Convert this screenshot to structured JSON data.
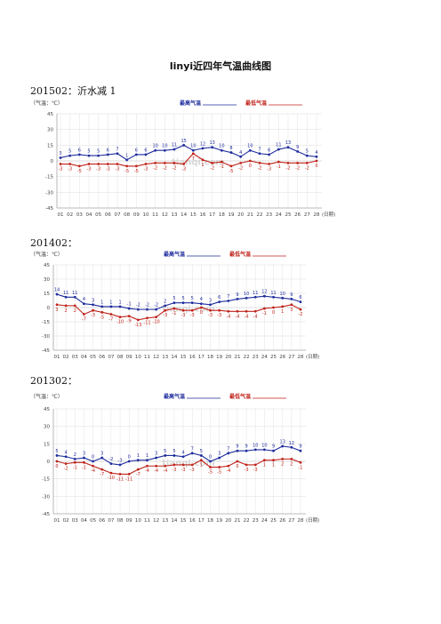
{
  "document": {
    "title": "linyi近四年气温曲线图"
  },
  "sections": [
    {
      "title": "201502：沂水减 1"
    },
    {
      "title": "201402："
    },
    {
      "title": "201302："
    }
  ],
  "colors": {
    "high": "#1f2d9e",
    "low": "#c0231b",
    "grid": "#dcdcdc",
    "axis": "#888888",
    "watermark": "#cfcfcf"
  },
  "chart_data": [
    {
      "type": "line",
      "ylabel": "（气温：℃）",
      "xlabel": "(日期)",
      "legend": {
        "position": "top-right",
        "high": "最高气温",
        "low": "最低气温"
      },
      "ylim": [
        -45,
        45
      ],
      "yticks": [
        45,
        30,
        15,
        0,
        -15,
        -30,
        -45
      ],
      "categories": [
        "01",
        "02",
        "03",
        "04",
        "05",
        "06",
        "07",
        "08",
        "09",
        "10",
        "11",
        "12",
        "13",
        "14",
        "15",
        "16",
        "17",
        "18",
        "19",
        "20",
        "21",
        "22",
        "23",
        "24",
        "25",
        "26",
        "27",
        "28"
      ],
      "series": [
        {
          "name": "最高气温",
          "values": [
            3,
            5,
            6,
            5,
            5,
            6,
            7,
            1,
            6,
            6,
            10,
            10,
            11,
            15,
            10,
            12,
            13,
            10,
            8,
            4,
            10,
            7,
            6,
            11,
            13,
            9,
            5,
            4
          ]
        },
        {
          "name": "最低气温",
          "values": [
            -3,
            -3,
            -5,
            -3,
            -3,
            -3,
            -3,
            -5,
            -5,
            -3,
            -2,
            -2,
            -2,
            -3,
            7,
            1,
            -2,
            -1,
            -5,
            -2,
            0,
            -2,
            -3,
            -1,
            -2,
            -2,
            -2,
            0
          ]
        }
      ],
      "watermark": "tianqi.com"
    },
    {
      "type": "line",
      "ylabel": "（气温：℃）",
      "xlabel": "(日期)",
      "legend": {
        "position": "top-right",
        "high": "最高气温",
        "low": "最低气温"
      },
      "ylim": [
        -45,
        45
      ],
      "yticks": [
        45,
        30,
        15,
        0,
        -15,
        -30,
        -45
      ],
      "categories": [
        "01",
        "02",
        "03",
        "04",
        "05",
        "06",
        "07",
        "08",
        "09",
        "10",
        "11",
        "12",
        "13",
        "14",
        "15",
        "16",
        "17",
        "18",
        "19",
        "20",
        "21",
        "22",
        "23",
        "24",
        "25",
        "26",
        "27",
        "28"
      ],
      "series": [
        {
          "name": "最高气温",
          "values": [
            14,
            11,
            11,
            4,
            3,
            1,
            1,
            1,
            -1,
            -2,
            -2,
            -2,
            2,
            5,
            5,
            5,
            4,
            3,
            6,
            7,
            9,
            10,
            11,
            12,
            11,
            10,
            9,
            6
          ]
        },
        {
          "name": "最低气温",
          "values": [
            3,
            2,
            2,
            -7,
            -3,
            -5,
            -7,
            -10,
            -9,
            -13,
            -11,
            -10,
            -3,
            -1,
            -3,
            -3,
            0,
            -3,
            -3,
            -4,
            -4,
            -4,
            -4,
            -1,
            0,
            1,
            3,
            -2
          ]
        }
      ],
      "watermark": "tianqi.com"
    },
    {
      "type": "line",
      "ylabel": "（气温：℃）",
      "xlabel": "(日期)",
      "legend": {
        "position": "top-right",
        "high": "最高气温",
        "low": "最低气温"
      },
      "ylim": [
        -45,
        45
      ],
      "yticks": [
        45,
        30,
        15,
        0,
        -15,
        -30,
        -45
      ],
      "categories": [
        "01",
        "02",
        "03",
        "04",
        "05",
        "06",
        "07",
        "08",
        "09",
        "10",
        "11",
        "12",
        "13",
        "14",
        "15",
        "16",
        "17",
        "18",
        "19",
        "20",
        "21",
        "22",
        "23",
        "24",
        "25",
        "26",
        "27",
        "28"
      ],
      "series": [
        {
          "name": "最高气温",
          "values": [
            5,
            4,
            2,
            3,
            0,
            3,
            -2,
            -3,
            0,
            1,
            1,
            3,
            5,
            5,
            4,
            7,
            5,
            0,
            3,
            7,
            9,
            9,
            10,
            10,
            9,
            13,
            12,
            9
          ]
        },
        {
          "name": "最低气温",
          "values": [
            0,
            -2,
            -1,
            -1,
            -4,
            -7,
            -10,
            -11,
            -11,
            -7,
            -4,
            -4,
            -4,
            -3,
            -3,
            -3,
            1,
            -5,
            -5,
            -4,
            0,
            -3,
            -3,
            1,
            1,
            2,
            2,
            -1
          ]
        }
      ],
      "watermark": "tianqi.com"
    }
  ]
}
